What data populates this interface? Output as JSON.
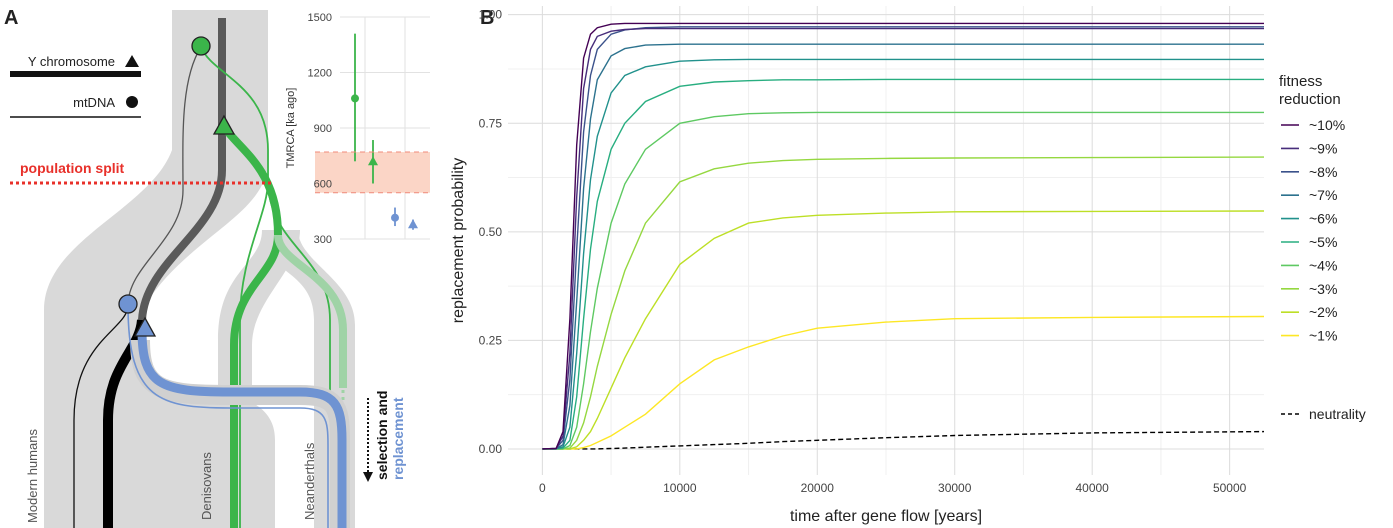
{
  "panel_a": {
    "label": "A",
    "legend": {
      "y_label": "Y chromosome",
      "mt_label": "mtDNA"
    },
    "split_label": "population split",
    "selection_label_1": "selection and",
    "selection_label_2": "replacement",
    "lineages": {
      "modern": "Modern humans",
      "denisovans": "Denisovans",
      "neanderthals": "Neanderthals"
    },
    "colors": {
      "gray_band": "#d9d9d9",
      "modern": "#000000",
      "archaic_old": "#5a5a5a",
      "denisovan": "#3bb54a",
      "neanderthal_faded": "#9fd3a6",
      "neanderthal_new": "#6f93d2",
      "split": "#e8302a"
    }
  },
  "panel_b": {
    "label": "B",
    "legend_title_1": "fitness",
    "legend_title_2": "reduction"
  },
  "chart_data": [
    {
      "type": "scatter",
      "title": "",
      "xlabel": "",
      "ylabel": "TMRCA [ka ago]",
      "ylim": [
        300,
        1500
      ],
      "yticks": [
        300,
        600,
        900,
        1200,
        1500
      ],
      "grid": true,
      "band": {
        "from": 550,
        "to": 770,
        "color": "#fbd5c6"
      },
      "points": [
        {
          "x": 1,
          "y": 1060,
          "low": 720,
          "high": 1410,
          "marker": "circle",
          "color": "#3bb54a"
        },
        {
          "x": 2,
          "y": 720,
          "low": 600,
          "high": 835,
          "marker": "triangle",
          "color": "#3bb54a"
        },
        {
          "x": 3,
          "y": 415,
          "low": 370,
          "high": 470,
          "marker": "circle",
          "color": "#6f93d2"
        },
        {
          "x": 4,
          "y": 380,
          "low": 350,
          "high": 405,
          "marker": "triangle",
          "color": "#6f93d2"
        }
      ]
    },
    {
      "type": "line",
      "title": "",
      "xlabel": "time after gene flow [years]",
      "ylabel": "replacement probability",
      "xlim": [
        -2500,
        52500
      ],
      "ylim": [
        -0.06,
        1.02
      ],
      "xticks": [
        0,
        10000,
        20000,
        30000,
        40000,
        50000
      ],
      "yticks": [
        "0.00",
        "0.25",
        "0.50",
        "0.75",
        "1.00"
      ],
      "grid": true,
      "legend_position": "right",
      "x": [
        0,
        1000,
        1500,
        2000,
        2500,
        3000,
        3500,
        4000,
        5000,
        6000,
        7500,
        10000,
        12500,
        15000,
        17500,
        20000,
        25000,
        30000,
        40000,
        52500
      ],
      "series": [
        {
          "name": "~10%",
          "color": "#440154",
          "values": [
            0,
            0.001,
            0.04,
            0.3,
            0.7,
            0.9,
            0.955,
            0.97,
            0.978,
            0.98,
            0.98,
            0.98,
            0.98,
            0.98,
            0.98,
            0.98,
            0.98,
            0.98,
            0.98,
            0.98
          ]
        },
        {
          "name": "~9%",
          "color": "#472d7b",
          "values": [
            0,
            0.001,
            0.03,
            0.22,
            0.58,
            0.83,
            0.92,
            0.95,
            0.962,
            0.966,
            0.968,
            0.968,
            0.968,
            0.968,
            0.968,
            0.968,
            0.968,
            0.968,
            0.968,
            0.968
          ]
        },
        {
          "name": "~8%",
          "color": "#3b528b",
          "values": [
            0,
            0.001,
            0.02,
            0.16,
            0.46,
            0.73,
            0.86,
            0.92,
            0.955,
            0.965,
            0.97,
            0.972,
            0.972,
            0.972,
            0.972,
            0.972,
            0.972,
            0.972,
            0.972,
            0.972
          ]
        },
        {
          "name": "~7%",
          "color": "#2c728e",
          "values": [
            0,
            0,
            0.01,
            0.1,
            0.34,
            0.6,
            0.76,
            0.85,
            0.905,
            0.922,
            0.93,
            0.932,
            0.932,
            0.932,
            0.932,
            0.932,
            0.932,
            0.932,
            0.932,
            0.932
          ]
        },
        {
          "name": "~6%",
          "color": "#21918c",
          "values": [
            0,
            0,
            0.005,
            0.05,
            0.22,
            0.45,
            0.62,
            0.72,
            0.82,
            0.86,
            0.88,
            0.893,
            0.896,
            0.897,
            0.897,
            0.897,
            0.897,
            0.897,
            0.897,
            0.897
          ]
        },
        {
          "name": "~5%",
          "color": "#28ae80",
          "values": [
            0,
            0,
            0.002,
            0.02,
            0.12,
            0.3,
            0.46,
            0.57,
            0.69,
            0.75,
            0.8,
            0.835,
            0.845,
            0.848,
            0.85,
            0.85,
            0.851,
            0.851,
            0.851,
            0.851
          ]
        },
        {
          "name": "~4%",
          "color": "#5ec962",
          "values": [
            0,
            0,
            0,
            0.008,
            0.05,
            0.15,
            0.27,
            0.37,
            0.52,
            0.61,
            0.69,
            0.75,
            0.765,
            0.772,
            0.774,
            0.775,
            0.775,
            0.775,
            0.775,
            0.775
          ]
        },
        {
          "name": "~3%",
          "color": "#95d840",
          "values": [
            0,
            0,
            0,
            0.002,
            0.02,
            0.06,
            0.12,
            0.19,
            0.31,
            0.41,
            0.52,
            0.615,
            0.645,
            0.658,
            0.664,
            0.667,
            0.669,
            0.67,
            0.671,
            0.672
          ]
        },
        {
          "name": "~2%",
          "color": "#bddf26",
          "values": [
            0,
            0,
            0,
            0,
            0.005,
            0.02,
            0.04,
            0.07,
            0.14,
            0.21,
            0.3,
            0.425,
            0.485,
            0.52,
            0.532,
            0.538,
            0.543,
            0.546,
            0.547,
            0.548
          ]
        },
        {
          "name": "~1%",
          "color": "#fde725",
          "values": [
            0,
            0,
            0,
            0,
            0,
            0.003,
            0.008,
            0.015,
            0.03,
            0.05,
            0.08,
            0.15,
            0.205,
            0.235,
            0.26,
            0.278,
            0.292,
            0.3,
            0.303,
            0.305
          ]
        },
        {
          "name": "neutrality",
          "color": "#000000",
          "dashed": true,
          "values": [
            0,
            0,
            0,
            0,
            0,
            0,
            0,
            0,
            0.001,
            0.002,
            0.004,
            0.007,
            0.01,
            0.013,
            0.017,
            0.02,
            0.026,
            0.031,
            0.037,
            0.04
          ]
        }
      ]
    }
  ]
}
